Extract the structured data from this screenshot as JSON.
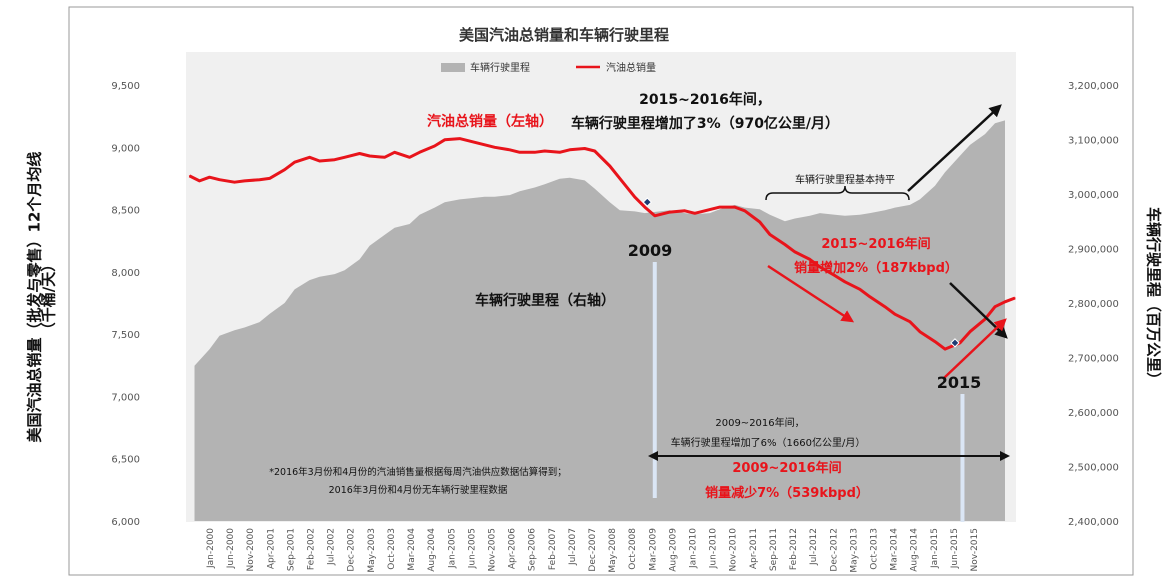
{
  "chart_data": {
    "type": "line",
    "title": "美国汽油总销量和车辆行驶里程",
    "legend": [
      {
        "name": "车辆行驶里程",
        "color": "#b3b3b3"
      },
      {
        "name": "汽油总销量",
        "color": "#e8141b"
      }
    ],
    "legend_position": "top-center",
    "y_left": {
      "label_line1": "美国汽油总销量（批发与零售）12个月均线",
      "label_line2": "（千桶/天）",
      "range": [
        6000,
        9500
      ],
      "ticks": [
        "6,000",
        "6,500",
        "7,000",
        "7,500",
        "8,000",
        "8,500",
        "9,000",
        "9,500"
      ],
      "tick_values": [
        6000,
        6500,
        7000,
        7500,
        8000,
        8500,
        9000,
        9500
      ]
    },
    "y_right": {
      "label": "车辆行驶里程（百万公里）",
      "range": [
        2400000,
        3200000
      ],
      "ticks": [
        "2,400,000",
        "2,500,000",
        "2,600,000",
        "2,700,000",
        "2,800,000",
        "2,900,000",
        "3,000,000",
        "3,100,000",
        "3,200,000"
      ],
      "tick_values": [
        2400000,
        2500000,
        2600000,
        2700000,
        2800000,
        2900000,
        3000000,
        3100000,
        3200000
      ]
    },
    "x_axis": {
      "range": [
        1999.83,
        2016.42
      ],
      "ticks": [
        "Jan-2000",
        "Jun-2000",
        "Nov-2000",
        "Apr-2001",
        "Sep-2001",
        "Feb-2002",
        "Jul-2002",
        "Dec-2002",
        "May-2003",
        "Oct-2003",
        "Mar-2004",
        "Aug-2004",
        "Jan-2005",
        "Jun-2005",
        "Nov-2005",
        "Apr-2006",
        "Sep-2006",
        "Feb-2007",
        "Jul-2007",
        "Dec-2007",
        "May-2008",
        "Oct-2008",
        "Mar-2009",
        "Aug-2009",
        "Jan-2010",
        "Jun-2010",
        "Nov-2010",
        "Apr-2011",
        "Sep-2011",
        "Feb-2012",
        "Jul-2012",
        "Dec-2012",
        "May-2013",
        "Oct-2013",
        "Mar-2014",
        "Aug-2014",
        "Jan-2015",
        "Jun-2015",
        "Nov-2015"
      ]
    },
    "series": [
      {
        "name": "车辆行驶里程",
        "axis": "right",
        "kind": "area",
        "x": [
          2000.0,
          2000.3,
          2000.5,
          2000.8,
          2001.0,
          2001.3,
          2001.5,
          2001.8,
          2002.0,
          2002.3,
          2002.5,
          2002.8,
          2003.0,
          2003.3,
          2003.5,
          2003.8,
          2004.0,
          2004.3,
          2004.5,
          2004.8,
          2005.0,
          2005.3,
          2005.5,
          2005.8,
          2006.0,
          2006.3,
          2006.5,
          2006.8,
          2007.0,
          2007.3,
          2007.5,
          2007.8,
          2008.0,
          2008.3,
          2008.5,
          2008.8,
          2009.0,
          2009.3,
          2009.5,
          2009.8,
          2010.0,
          2010.3,
          2010.5,
          2010.8,
          2011.0,
          2011.3,
          2011.5,
          2011.8,
          2012.0,
          2012.3,
          2012.5,
          2012.8,
          2013.0,
          2013.3,
          2013.5,
          2013.8,
          2014.0,
          2014.3,
          2014.5,
          2014.8,
          2015.0,
          2015.3,
          2015.5,
          2015.8,
          2016.0,
          2016.2
        ],
        "values": [
          2685000,
          2715000,
          2740000,
          2750000,
          2755000,
          2765000,
          2780000,
          2800000,
          2825000,
          2842000,
          2848000,
          2853000,
          2860000,
          2880000,
          2905000,
          2925000,
          2938000,
          2945000,
          2962000,
          2975000,
          2985000,
          2990000,
          2992000,
          2995000,
          2995000,
          2998000,
          3005000,
          3012000,
          3018000,
          3028000,
          3030000,
          3025000,
          3010000,
          2985000,
          2970000,
          2968000,
          2965000,
          2968000,
          2970000,
          2965000,
          2963000,
          2965000,
          2972000,
          2980000,
          2975000,
          2972000,
          2962000,
          2950000,
          2955000,
          2960000,
          2965000,
          2962000,
          2960000,
          2962000,
          2965000,
          2970000,
          2975000,
          2980000,
          2990000,
          3015000,
          3040000,
          3070000,
          3090000,
          3110000,
          3130000,
          3135000
        ]
      },
      {
        "name": "汽油总销量",
        "axis": "left",
        "kind": "line",
        "color": "#e8141b",
        "x": [
          1999.9,
          2000.1,
          2000.3,
          2000.5,
          2000.8,
          2001.0,
          2001.3,
          2001.5,
          2001.8,
          2002.0,
          2002.3,
          2002.5,
          2002.8,
          2003.0,
          2003.3,
          2003.5,
          2003.8,
          2004.0,
          2004.3,
          2004.5,
          2004.8,
          2005.0,
          2005.3,
          2005.5,
          2005.8,
          2006.0,
          2006.3,
          2006.5,
          2006.8,
          2007.0,
          2007.3,
          2007.5,
          2007.8,
          2008.0,
          2008.3,
          2008.5,
          2008.8,
          2009.0,
          2009.2,
          2009.5,
          2009.8,
          2010.0,
          2010.3,
          2010.5,
          2010.8,
          2011.0,
          2011.3,
          2011.5,
          2011.8,
          2012.0,
          2012.3,
          2012.5,
          2012.8,
          2013.0,
          2013.3,
          2013.5,
          2013.8,
          2014.0,
          2014.3,
          2014.5,
          2014.8,
          2015.0,
          2015.3,
          2015.5,
          2015.8,
          2016.0,
          2016.2,
          2016.4
        ],
        "values": [
          8770,
          8730,
          8760,
          8740,
          8720,
          8730,
          8740,
          8750,
          8820,
          8880,
          8920,
          8890,
          8900,
          8920,
          8950,
          8930,
          8920,
          8960,
          8920,
          8960,
          9010,
          9060,
          9070,
          9050,
          9020,
          9000,
          8980,
          8960,
          8960,
          8970,
          8960,
          8980,
          8990,
          8970,
          8850,
          8750,
          8600,
          8520,
          8450,
          8480,
          8490,
          8470,
          8500,
          8520,
          8520,
          8490,
          8400,
          8300,
          8220,
          8160,
          8100,
          8040,
          7970,
          7920,
          7860,
          7800,
          7720,
          7660,
          7600,
          7520,
          7440,
          7380,
          7430,
          7520,
          7620,
          7720,
          7760,
          7790
        ]
      }
    ],
    "annotations": {
      "gas_axis_label": "汽油总销量（左轴）",
      "vmt_axis_label": "车辆行驶里程（右轴）",
      "top_right_line1": "2015~2016年间，",
      "top_right_line2": "车辆行驶里程增加了3%（970亿公里/月）",
      "flat_label": "车辆行驶里程基本持平",
      "year_2009": "2009",
      "year_2015": "2015",
      "mid_right_line1": "2015~2016年间",
      "mid_right_line2": "销量增加2%（187kbpd）",
      "bottom_line1": "2009~2016年间，",
      "bottom_line2": "车辆行驶里程增加了6%（1660亿公里/月）",
      "bottom_red_line1": "2009~2016年间",
      "bottom_red_line2": "销量减少7%（539kbpd）",
      "footnote_line1": "*2016年3月份和4月份的汽油销售量根据每周汽油供应数据估算得到；",
      "footnote_line2": "2016年3月份和4月份无车辆行驶里程数据"
    },
    "grid": false
  }
}
